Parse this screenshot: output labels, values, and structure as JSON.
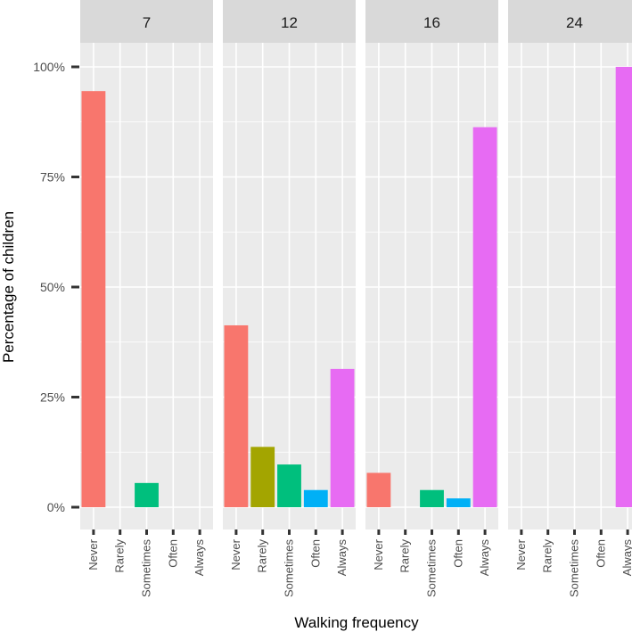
{
  "chart_data": {
    "type": "bar",
    "xlabel": "Walking frequency",
    "ylabel": "Percentage of children",
    "ylim": [
      0,
      100
    ],
    "y_ticks": [
      "0%",
      "25%",
      "50%",
      "75%",
      "100%"
    ],
    "y_tick_values": [
      0,
      25,
      50,
      75,
      100
    ],
    "categories": [
      "Never",
      "Rarely",
      "Sometimes",
      "Often",
      "Always"
    ],
    "colors": {
      "Never": "#F8766D",
      "Rarely": "#A3A500",
      "Sometimes": "#00BF7D",
      "Often": "#00B0F6",
      "Always": "#E76BF3"
    },
    "panel_background": "#EBEBEB",
    "strip_background": "#D9D9D9",
    "grid": true,
    "legend": "none",
    "facets": [
      {
        "label": "7",
        "values": [
          94.5,
          0,
          5.5,
          0,
          0
        ]
      },
      {
        "label": "12",
        "values": [
          41.3,
          13.7,
          9.7,
          3.9,
          31.4
        ]
      },
      {
        "label": "16",
        "values": [
          7.8,
          0,
          3.9,
          2.0,
          86.3
        ]
      },
      {
        "label": "24",
        "values": [
          0,
          0,
          0,
          0,
          100
        ]
      }
    ]
  }
}
